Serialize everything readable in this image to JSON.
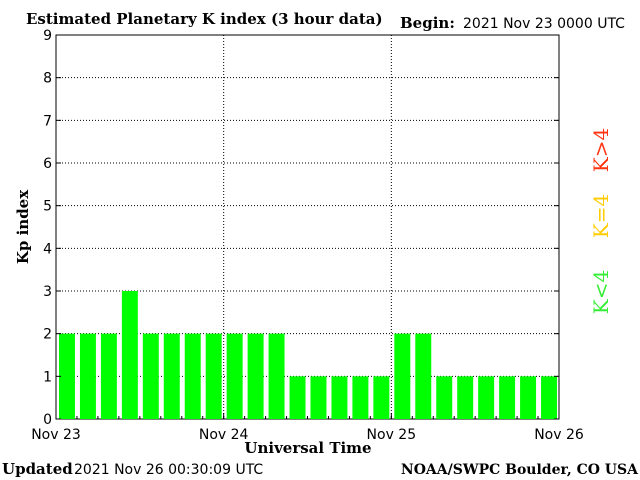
{
  "chart_data": {
    "type": "bar",
    "title": "Estimated Planetary K index (3 hour data)",
    "begin_label": "Begin:",
    "begin_value": "2021 Nov 23 0000 UTC",
    "ylabel": "Kp index",
    "xlabel": "Universal Time",
    "ylim": [
      0,
      9
    ],
    "yticks": [
      "0",
      "1",
      "2",
      "3",
      "4",
      "5",
      "6",
      "7",
      "8",
      "9"
    ],
    "xticks": [
      "Nov 23",
      "Nov 24",
      "Nov 25",
      "Nov 26"
    ],
    "grid": true,
    "bar_color": "#00ff00",
    "values": [
      2,
      2,
      2,
      3,
      2,
      2,
      2,
      2,
      2,
      2,
      2,
      1,
      1,
      1,
      1,
      1,
      2,
      2,
      1,
      1,
      1,
      1,
      1,
      1
    ],
    "legend": [
      {
        "text": "K<4",
        "color": "#33ee33"
      },
      {
        "text": "K=4",
        "color": "#ffcc00"
      },
      {
        "text": "K>4",
        "color": "#ff3311"
      }
    ]
  },
  "footer": {
    "updated_label": "Updated",
    "updated_value": "2021 Nov 26 00:30:09 UTC",
    "source": "NOAA/SWPC Boulder, CO USA"
  }
}
